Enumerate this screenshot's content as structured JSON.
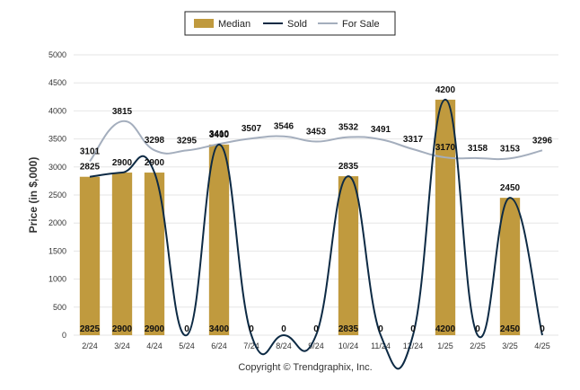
{
  "chart_data": {
    "type": "bar",
    "categories": [
      "2/24",
      "3/24",
      "4/24",
      "5/24",
      "6/24",
      "7/24",
      "8/24",
      "9/24",
      "10/24",
      "11/24",
      "12/24",
      "1/25",
      "2/25",
      "3/25",
      "4/25"
    ],
    "series": [
      {
        "name": "Median",
        "type": "bar",
        "color": "#c09a3e",
        "values": [
          2825,
          2900,
          2900,
          0,
          3400,
          0,
          0,
          0,
          2835,
          0,
          0,
          4200,
          0,
          2450,
          0
        ]
      },
      {
        "name": "Sold",
        "type": "line",
        "color": "#0d2a44",
        "values": [
          2825,
          2900,
          2900,
          0,
          3400,
          0,
          0,
          0,
          2835,
          0,
          0,
          4200,
          0,
          2450,
          0
        ]
      },
      {
        "name": "For Sale",
        "type": "line",
        "color": "#a4aebd",
        "values": [
          3101,
          3815,
          3298,
          3295,
          3410,
          3507,
          3546,
          3453,
          3532,
          3491,
          3317,
          3170,
          3158,
          3153,
          3296
        ]
      }
    ],
    "ylabel": "Price (in $,000)",
    "xlabel": "",
    "ylim": [
      0,
      5000
    ],
    "yticks": [
      "0",
      "500",
      "1000",
      "1500",
      "2000",
      "2500",
      "3000",
      "3500",
      "4000",
      "4500",
      "5000"
    ],
    "grid": true,
    "legend_position": "top-center"
  },
  "footer": "Copyright © Trendgraphix, Inc."
}
